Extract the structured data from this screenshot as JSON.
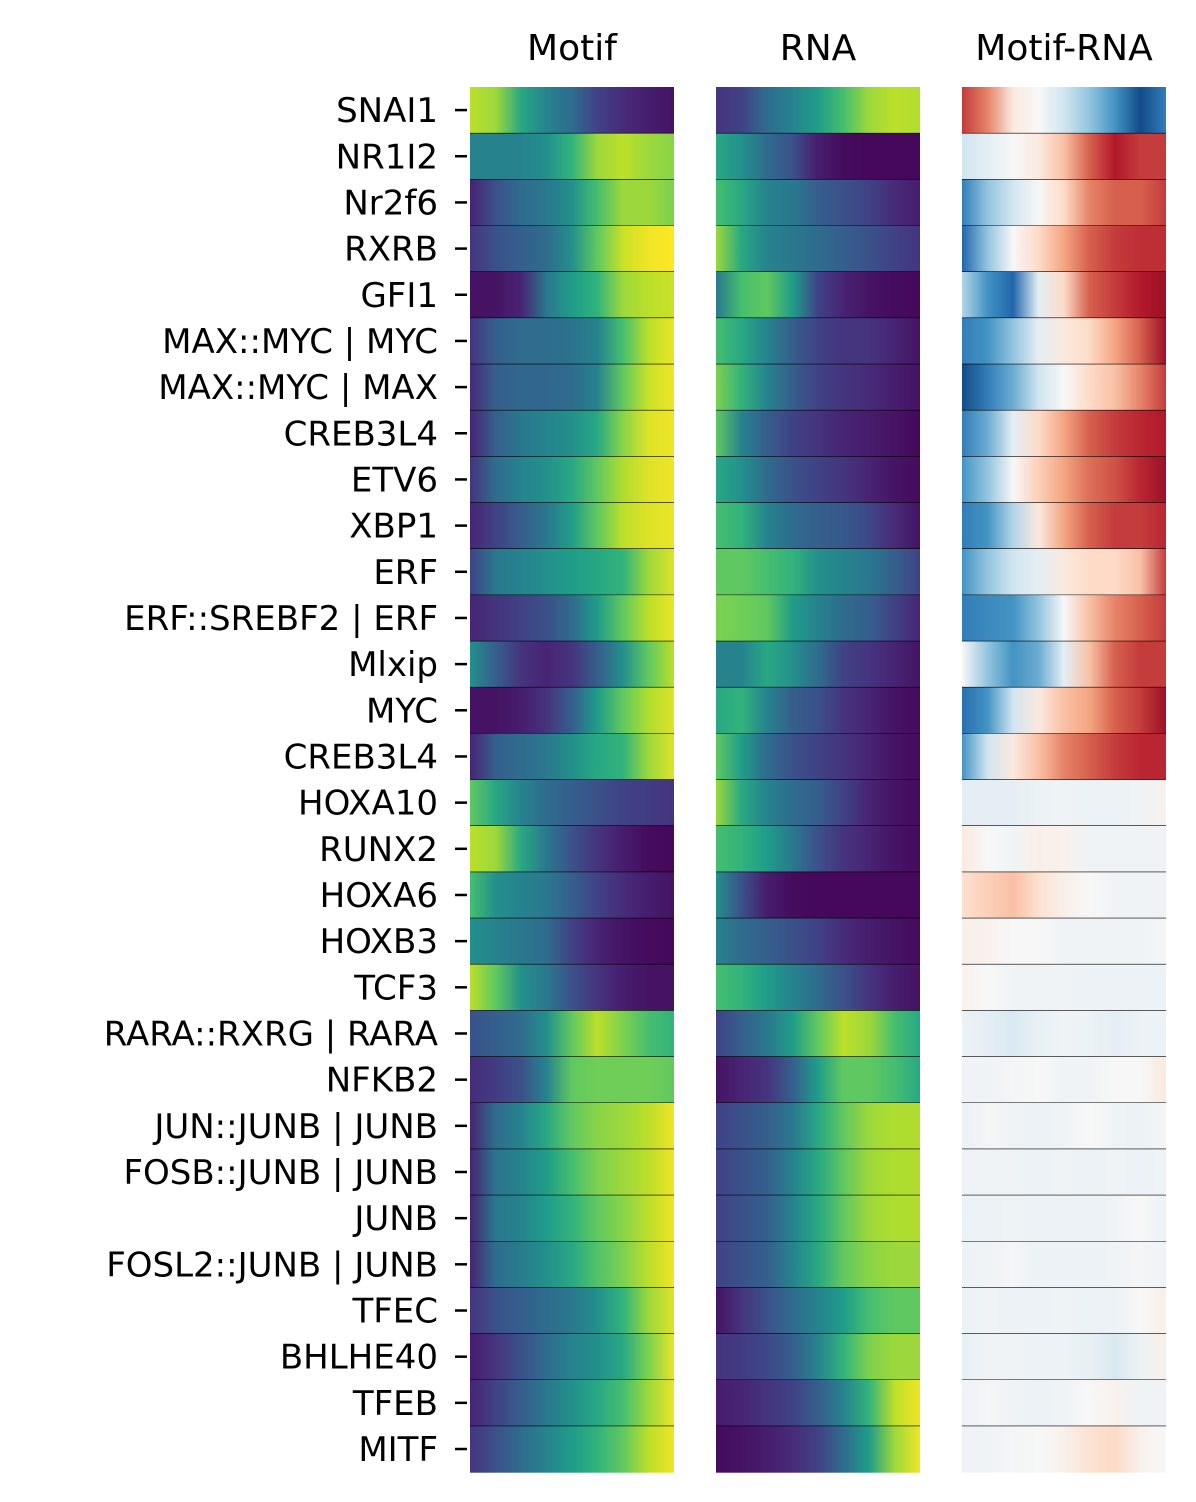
{
  "chart_data": {
    "type": "heatmap",
    "panels": [
      {
        "title": "Motif",
        "colormap": "viridis"
      },
      {
        "title": "RNA",
        "colormap": "viridis"
      },
      {
        "title": "Motif-RNA",
        "colormap": "RdBu_r"
      }
    ],
    "rows": [
      "SNAI1",
      "NR1I2",
      "Nr2f6",
      "RXRB",
      "GFI1",
      "MAX::MYC | MYC",
      "MAX::MYC | MAX",
      "CREB3L4",
      "ETV6",
      "XBP1",
      "ERF",
      "ERF::SREBF2 | ERF",
      "Mlxip",
      "MYC",
      "CREB3L4",
      "HOXA10",
      "RUNX2",
      "HOXA6",
      "HOXB3",
      "TCF3",
      "RARA::RXRG | RARA",
      "NFKB2",
      "JUN::JUNB | JUNB",
      "FOSB::JUNB | JUNB",
      "JUNB",
      "FOSL2::JUNB | JUNB",
      "TFEC",
      "BHLHE40",
      "TFEB",
      "MITF"
    ],
    "profiles": {
      "Motif": [
        [
          0.9,
          0.85,
          0.6,
          0.45,
          0.35,
          0.2,
          0.12,
          0.08,
          0.05
        ],
        [
          0.45,
          0.45,
          0.45,
          0.5,
          0.65,
          0.85,
          0.9,
          0.85,
          0.82
        ],
        [
          0.1,
          0.25,
          0.35,
          0.4,
          0.5,
          0.7,
          0.85,
          0.85,
          0.8
        ],
        [
          0.15,
          0.25,
          0.3,
          0.35,
          0.5,
          0.75,
          0.92,
          0.98,
          1.0
        ],
        [
          0.05,
          0.05,
          0.1,
          0.4,
          0.55,
          0.65,
          0.85,
          0.9,
          0.92
        ],
        [
          0.15,
          0.3,
          0.35,
          0.35,
          0.38,
          0.45,
          0.7,
          0.9,
          0.97
        ],
        [
          0.12,
          0.3,
          0.33,
          0.33,
          0.35,
          0.45,
          0.75,
          0.92,
          0.98
        ],
        [
          0.1,
          0.3,
          0.4,
          0.45,
          0.5,
          0.6,
          0.82,
          0.95,
          0.98
        ],
        [
          0.15,
          0.35,
          0.45,
          0.5,
          0.6,
          0.75,
          0.88,
          0.95,
          0.98
        ],
        [
          0.1,
          0.2,
          0.3,
          0.4,
          0.55,
          0.75,
          0.9,
          0.95,
          0.97
        ],
        [
          0.2,
          0.4,
          0.45,
          0.5,
          0.55,
          0.6,
          0.65,
          0.85,
          0.95
        ],
        [
          0.1,
          0.15,
          0.2,
          0.25,
          0.35,
          0.55,
          0.75,
          0.9,
          0.97
        ],
        [
          0.5,
          0.3,
          0.15,
          0.1,
          0.15,
          0.3,
          0.5,
          0.75,
          0.9
        ],
        [
          0.05,
          0.05,
          0.08,
          0.15,
          0.3,
          0.55,
          0.75,
          0.88,
          0.95
        ],
        [
          0.1,
          0.3,
          0.35,
          0.4,
          0.5,
          0.6,
          0.65,
          0.85,
          0.95
        ],
        [
          0.75,
          0.6,
          0.45,
          0.35,
          0.3,
          0.25,
          0.2,
          0.18,
          0.15
        ],
        [
          0.9,
          0.85,
          0.6,
          0.4,
          0.25,
          0.15,
          0.08,
          0.03,
          0.02
        ],
        [
          0.7,
          0.5,
          0.45,
          0.4,
          0.3,
          0.2,
          0.12,
          0.08,
          0.05
        ],
        [
          0.5,
          0.45,
          0.4,
          0.35,
          0.2,
          0.1,
          0.05,
          0.03,
          0.02
        ],
        [
          0.9,
          0.75,
          0.5,
          0.4,
          0.25,
          0.15,
          0.08,
          0.05,
          0.05
        ],
        [
          0.25,
          0.3,
          0.35,
          0.5,
          0.75,
          0.9,
          0.8,
          0.7,
          0.65
        ],
        [
          0.12,
          0.18,
          0.25,
          0.45,
          0.75,
          0.78,
          0.78,
          0.78,
          0.75
        ],
        [
          0.1,
          0.35,
          0.45,
          0.6,
          0.75,
          0.82,
          0.85,
          0.9,
          0.98
        ],
        [
          0.1,
          0.38,
          0.45,
          0.55,
          0.7,
          0.8,
          0.85,
          0.9,
          0.98
        ],
        [
          0.1,
          0.4,
          0.45,
          0.55,
          0.65,
          0.75,
          0.82,
          0.9,
          0.98
        ],
        [
          0.1,
          0.35,
          0.42,
          0.5,
          0.6,
          0.72,
          0.8,
          0.9,
          0.98
        ],
        [
          0.15,
          0.25,
          0.3,
          0.35,
          0.4,
          0.5,
          0.65,
          0.85,
          0.95
        ],
        [
          0.08,
          0.15,
          0.25,
          0.35,
          0.45,
          0.5,
          0.6,
          0.8,
          0.97
        ],
        [
          0.1,
          0.2,
          0.3,
          0.4,
          0.5,
          0.6,
          0.7,
          0.85,
          0.97
        ],
        [
          0.15,
          0.25,
          0.35,
          0.45,
          0.55,
          0.65,
          0.75,
          0.9,
          0.98
        ]
      ],
      "RNA": [
        [
          0.15,
          0.2,
          0.35,
          0.45,
          0.55,
          0.7,
          0.85,
          0.9,
          0.88
        ],
        [
          0.6,
          0.5,
          0.35,
          0.25,
          0.08,
          0.03,
          0.02,
          0.02,
          0.02
        ],
        [
          0.7,
          0.6,
          0.45,
          0.4,
          0.3,
          0.25,
          0.2,
          0.12,
          0.08
        ],
        [
          0.85,
          0.6,
          0.45,
          0.4,
          0.35,
          0.3,
          0.25,
          0.2,
          0.15
        ],
        [
          0.4,
          0.7,
          0.75,
          0.55,
          0.2,
          0.1,
          0.05,
          0.03,
          0.02
        ],
        [
          0.7,
          0.6,
          0.45,
          0.3,
          0.2,
          0.15,
          0.15,
          0.1,
          0.05
        ],
        [
          0.8,
          0.65,
          0.45,
          0.3,
          0.2,
          0.15,
          0.12,
          0.08,
          0.05
        ],
        [
          0.75,
          0.45,
          0.3,
          0.2,
          0.15,
          0.1,
          0.08,
          0.05,
          0.02
        ],
        [
          0.6,
          0.5,
          0.35,
          0.25,
          0.2,
          0.15,
          0.1,
          0.05,
          0.03
        ],
        [
          0.7,
          0.65,
          0.45,
          0.35,
          0.3,
          0.28,
          0.22,
          0.12,
          0.05
        ],
        [
          0.75,
          0.75,
          0.7,
          0.65,
          0.5,
          0.45,
          0.4,
          0.3,
          0.2
        ],
        [
          0.8,
          0.78,
          0.75,
          0.55,
          0.45,
          0.35,
          0.3,
          0.2,
          0.1
        ],
        [
          0.45,
          0.45,
          0.6,
          0.5,
          0.35,
          0.2,
          0.15,
          0.1,
          0.05
        ],
        [
          0.6,
          0.65,
          0.45,
          0.3,
          0.25,
          0.15,
          0.1,
          0.05,
          0.03
        ],
        [
          0.75,
          0.55,
          0.35,
          0.25,
          0.2,
          0.15,
          0.1,
          0.05,
          0.03
        ],
        [
          0.85,
          0.6,
          0.45,
          0.35,
          0.3,
          0.2,
          0.1,
          0.05,
          0.03
        ],
        [
          0.7,
          0.65,
          0.55,
          0.4,
          0.25,
          0.15,
          0.1,
          0.05,
          0.03
        ],
        [
          0.5,
          0.25,
          0.08,
          0.03,
          0.02,
          0.02,
          0.02,
          0.02,
          0.02
        ],
        [
          0.45,
          0.35,
          0.3,
          0.25,
          0.2,
          0.12,
          0.08,
          0.05,
          0.03
        ],
        [
          0.7,
          0.65,
          0.55,
          0.45,
          0.35,
          0.25,
          0.15,
          0.08,
          0.05
        ],
        [
          0.2,
          0.3,
          0.4,
          0.55,
          0.75,
          0.9,
          0.85,
          0.7,
          0.6
        ],
        [
          0.05,
          0.1,
          0.15,
          0.3,
          0.55,
          0.75,
          0.75,
          0.7,
          0.6
        ],
        [
          0.2,
          0.25,
          0.3,
          0.4,
          0.6,
          0.75,
          0.85,
          0.88,
          0.88
        ],
        [
          0.2,
          0.25,
          0.3,
          0.45,
          0.6,
          0.75,
          0.85,
          0.88,
          0.88
        ],
        [
          0.2,
          0.25,
          0.3,
          0.45,
          0.6,
          0.75,
          0.85,
          0.88,
          0.88
        ],
        [
          0.2,
          0.25,
          0.3,
          0.45,
          0.6,
          0.75,
          0.82,
          0.85,
          0.85
        ],
        [
          0.05,
          0.15,
          0.25,
          0.35,
          0.45,
          0.55,
          0.7,
          0.75,
          0.75
        ],
        [
          0.15,
          0.18,
          0.22,
          0.3,
          0.45,
          0.65,
          0.8,
          0.85,
          0.85
        ],
        [
          0.08,
          0.1,
          0.15,
          0.2,
          0.3,
          0.45,
          0.65,
          0.9,
          0.98
        ],
        [
          0.03,
          0.05,
          0.08,
          0.12,
          0.2,
          0.35,
          0.55,
          0.85,
          0.98
        ]
      ],
      "Motif-RNA": [
        [
          0.85,
          0.75,
          0.55,
          0.5,
          0.4,
          0.3,
          0.2,
          0.05,
          0.15
        ],
        [
          0.4,
          0.45,
          0.5,
          0.55,
          0.65,
          0.8,
          0.9,
          0.85,
          0.85
        ],
        [
          0.15,
          0.3,
          0.4,
          0.5,
          0.6,
          0.75,
          0.8,
          0.8,
          0.85
        ],
        [
          0.1,
          0.3,
          0.5,
          0.6,
          0.7,
          0.8,
          0.85,
          0.87,
          0.87
        ],
        [
          0.35,
          0.2,
          0.1,
          0.45,
          0.6,
          0.8,
          0.85,
          0.9,
          0.93
        ],
        [
          0.15,
          0.2,
          0.3,
          0.45,
          0.55,
          0.6,
          0.7,
          0.8,
          0.93
        ],
        [
          0.05,
          0.15,
          0.25,
          0.4,
          0.5,
          0.6,
          0.65,
          0.75,
          0.85
        ],
        [
          0.15,
          0.25,
          0.45,
          0.6,
          0.7,
          0.8,
          0.85,
          0.88,
          0.9
        ],
        [
          0.2,
          0.3,
          0.5,
          0.62,
          0.7,
          0.78,
          0.82,
          0.88,
          0.93
        ],
        [
          0.15,
          0.2,
          0.35,
          0.55,
          0.7,
          0.8,
          0.85,
          0.85,
          0.88
        ],
        [
          0.2,
          0.3,
          0.4,
          0.45,
          0.55,
          0.6,
          0.6,
          0.65,
          0.85
        ],
        [
          0.15,
          0.18,
          0.2,
          0.3,
          0.5,
          0.65,
          0.75,
          0.8,
          0.85
        ],
        [
          0.5,
          0.3,
          0.2,
          0.25,
          0.45,
          0.65,
          0.8,
          0.85,
          0.85
        ],
        [
          0.12,
          0.2,
          0.4,
          0.55,
          0.65,
          0.7,
          0.8,
          0.85,
          0.93
        ],
        [
          0.2,
          0.4,
          0.55,
          0.65,
          0.75,
          0.8,
          0.85,
          0.88,
          0.88
        ],
        [
          0.45,
          0.45,
          0.45,
          0.47,
          0.48,
          0.47,
          0.47,
          0.48,
          0.52
        ],
        [
          0.55,
          0.5,
          0.48,
          0.53,
          0.52,
          0.48,
          0.48,
          0.48,
          0.48
        ],
        [
          0.58,
          0.62,
          0.65,
          0.58,
          0.53,
          0.5,
          0.48,
          0.48,
          0.48
        ],
        [
          0.53,
          0.52,
          0.5,
          0.5,
          0.48,
          0.48,
          0.48,
          0.48,
          0.49
        ],
        [
          0.52,
          0.5,
          0.48,
          0.48,
          0.48,
          0.47,
          0.47,
          0.47,
          0.47
        ],
        [
          0.47,
          0.45,
          0.42,
          0.46,
          0.48,
          0.47,
          0.45,
          0.47,
          0.47
        ],
        [
          0.48,
          0.48,
          0.49,
          0.5,
          0.48,
          0.48,
          0.5,
          0.5,
          0.55
        ],
        [
          0.47,
          0.49,
          0.48,
          0.47,
          0.48,
          0.5,
          0.48,
          0.47,
          0.49
        ],
        [
          0.48,
          0.48,
          0.48,
          0.47,
          0.48,
          0.47,
          0.48,
          0.47,
          0.48
        ],
        [
          0.47,
          0.47,
          0.48,
          0.47,
          0.47,
          0.47,
          0.48,
          0.5,
          0.47
        ],
        [
          0.47,
          0.48,
          0.49,
          0.47,
          0.47,
          0.47,
          0.48,
          0.49,
          0.48
        ],
        [
          0.47,
          0.48,
          0.47,
          0.47,
          0.48,
          0.47,
          0.47,
          0.5,
          0.53
        ],
        [
          0.46,
          0.48,
          0.48,
          0.47,
          0.47,
          0.46,
          0.42,
          0.47,
          0.53
        ],
        [
          0.48,
          0.49,
          0.48,
          0.47,
          0.48,
          0.5,
          0.52,
          0.48,
          0.48
        ],
        [
          0.48,
          0.48,
          0.49,
          0.5,
          0.52,
          0.58,
          0.6,
          0.52,
          0.5
        ]
      ]
    },
    "value_scale": [
      0,
      1
    ],
    "grid": false,
    "legend": "none"
  }
}
